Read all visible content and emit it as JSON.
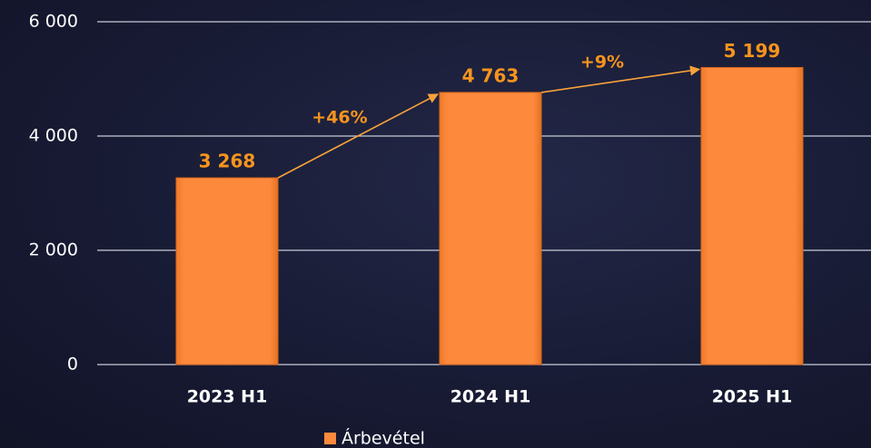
{
  "chart_data": {
    "type": "bar",
    "categories": [
      "2023 H1",
      "2024 H1",
      "2025 H1"
    ],
    "series": [
      {
        "name": "Árbevétel",
        "color": "#fd8a3c",
        "values": [
          3268,
          4763,
          5199
        ],
        "value_labels": [
          "3 268",
          "4 763",
          "5 199"
        ]
      }
    ],
    "ylim": [
      0,
      6000
    ],
    "yticks": [
      0,
      {
        "value": 2000,
        "label": "2 000"
      },
      {
        "value": 4000,
        "label": "4 000"
      },
      {
        "value": 6000,
        "label": "6 000"
      }
    ],
    "grid": true,
    "legend": "bottom",
    "annotations": [
      "+46%",
      "+9%"
    ]
  }
}
